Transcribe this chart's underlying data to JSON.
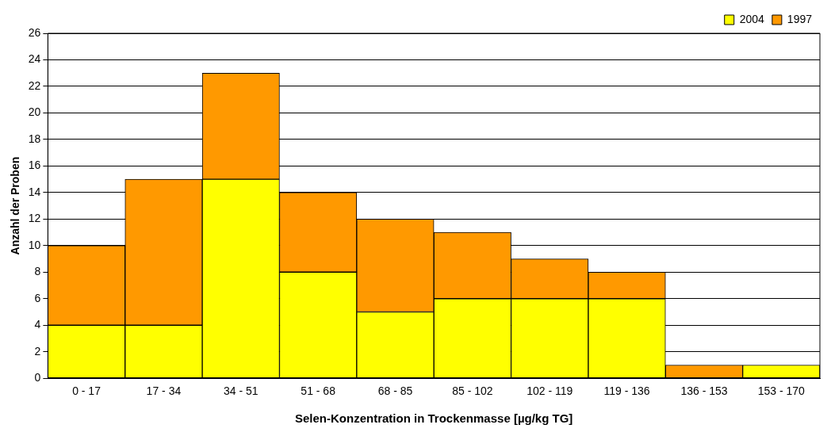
{
  "chart_data": {
    "type": "bar",
    "stacked": true,
    "xlabel": "Selen-Konzentration in Trockenmasse [µg/kg TG]",
    "ylabel": "Anzahl der Proben",
    "categories": [
      "0 - 17",
      "17 - 34",
      "34 - 51",
      "51 - 68",
      "68 - 85",
      "85 - 102",
      "102 - 119",
      "119 - 136",
      "136 - 153",
      "153 - 170"
    ],
    "series": [
      {
        "name": "2004",
        "color": "#ffff00",
        "values": [
          4,
          4,
          15,
          8,
          5,
          6,
          6,
          6,
          0,
          1
        ]
      },
      {
        "name": "1997",
        "color": "#ff9900",
        "values": [
          6,
          11,
          8,
          6,
          7,
          5,
          3,
          2,
          1,
          0
        ]
      }
    ],
    "ylim": [
      0,
      26
    ],
    "yticks": [
      0,
      2,
      4,
      6,
      8,
      10,
      12,
      14,
      16,
      18,
      20,
      22,
      24,
      26
    ],
    "grid": "y",
    "legend": "top right"
  }
}
